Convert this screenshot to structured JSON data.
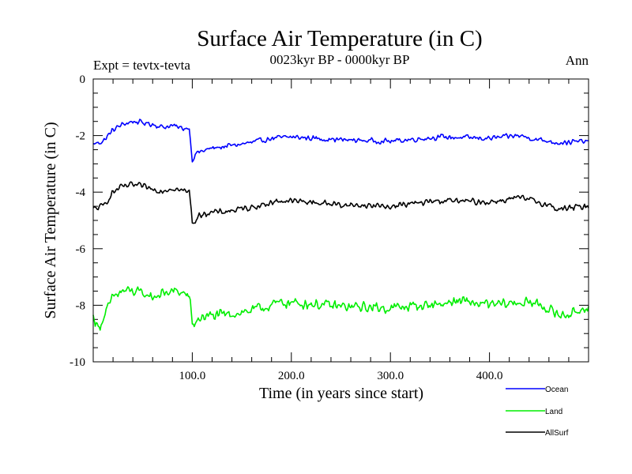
{
  "chart_data": {
    "type": "line",
    "title": "Surface Air Temperature (in C)",
    "subtitle": "0023kyr BP - 0000kyr BP",
    "annotation_left": "Expt = tevtx-tevta",
    "annotation_right": "Ann",
    "xlabel": "Time (in years since start)",
    "ylabel": "Surface Air Temperature (in C)",
    "xlim": [
      0,
      500
    ],
    "ylim": [
      -10,
      0
    ],
    "x_ticks": [
      100,
      200,
      300,
      400
    ],
    "x_tick_labels": [
      "100.0",
      "200.0",
      "300.0",
      "400.0"
    ],
    "y_ticks": [
      -10,
      -8,
      -6,
      -4,
      -2,
      0
    ],
    "y_tick_labels": [
      "-10",
      "-8",
      "-6",
      "-4",
      "-2",
      "0"
    ],
    "legend_position": "bottom-right, outside plot",
    "series": [
      {
        "name": "Ocean",
        "color": "#0000ff",
        "keypoints": [
          [
            0,
            -2.3
          ],
          [
            10,
            -2.2
          ],
          [
            20,
            -1.8
          ],
          [
            30,
            -1.6
          ],
          [
            40,
            -1.5
          ],
          [
            50,
            -1.55
          ],
          [
            60,
            -1.6
          ],
          [
            70,
            -1.7
          ],
          [
            80,
            -1.65
          ],
          [
            90,
            -1.75
          ],
          [
            97,
            -1.72
          ],
          [
            99,
            -2.5
          ],
          [
            100,
            -2.85
          ],
          [
            105,
            -2.6
          ],
          [
            120,
            -2.45
          ],
          [
            140,
            -2.35
          ],
          [
            160,
            -2.25
          ],
          [
            180,
            -2.1
          ],
          [
            200,
            -2.05
          ],
          [
            250,
            -2.15
          ],
          [
            300,
            -2.2
          ],
          [
            350,
            -2.05
          ],
          [
            400,
            -2.1
          ],
          [
            430,
            -2.0
          ],
          [
            450,
            -2.15
          ],
          [
            470,
            -2.25
          ],
          [
            500,
            -2.2
          ]
        ]
      },
      {
        "name": "Land",
        "color": "#00ee00",
        "keypoints": [
          [
            0,
            -8.4
          ],
          [
            5,
            -8.8
          ],
          [
            10,
            -8.5
          ],
          [
            20,
            -7.7
          ],
          [
            30,
            -7.5
          ],
          [
            40,
            -7.5
          ],
          [
            50,
            -7.6
          ],
          [
            60,
            -7.7
          ],
          [
            70,
            -7.6
          ],
          [
            80,
            -7.5
          ],
          [
            90,
            -7.55
          ],
          [
            97,
            -7.7
          ],
          [
            99,
            -8.3
          ],
          [
            100,
            -8.7
          ],
          [
            110,
            -8.4
          ],
          [
            130,
            -8.35
          ],
          [
            150,
            -8.25
          ],
          [
            170,
            -8.1
          ],
          [
            190,
            -7.9
          ],
          [
            220,
            -7.95
          ],
          [
            250,
            -8.05
          ],
          [
            300,
            -8.1
          ],
          [
            350,
            -7.95
          ],
          [
            370,
            -7.85
          ],
          [
            400,
            -8.0
          ],
          [
            430,
            -7.9
          ],
          [
            450,
            -7.95
          ],
          [
            470,
            -8.35
          ],
          [
            485,
            -8.3
          ],
          [
            500,
            -8.0
          ]
        ]
      },
      {
        "name": "AllSurf",
        "color": "#000000",
        "keypoints": [
          [
            0,
            -4.6
          ],
          [
            10,
            -4.5
          ],
          [
            20,
            -4.0
          ],
          [
            30,
            -3.8
          ],
          [
            40,
            -3.75
          ],
          [
            50,
            -3.8
          ],
          [
            60,
            -3.9
          ],
          [
            70,
            -3.95
          ],
          [
            80,
            -3.85
          ],
          [
            90,
            -3.95
          ],
          [
            97,
            -4.0
          ],
          [
            99,
            -4.6
          ],
          [
            100,
            -5.1
          ],
          [
            110,
            -4.75
          ],
          [
            130,
            -4.7
          ],
          [
            150,
            -4.6
          ],
          [
            170,
            -4.45
          ],
          [
            190,
            -4.3
          ],
          [
            220,
            -4.35
          ],
          [
            250,
            -4.45
          ],
          [
            300,
            -4.5
          ],
          [
            350,
            -4.3
          ],
          [
            400,
            -4.35
          ],
          [
            430,
            -4.2
          ],
          [
            450,
            -4.35
          ],
          [
            470,
            -4.6
          ],
          [
            500,
            -4.5
          ]
        ]
      }
    ]
  }
}
